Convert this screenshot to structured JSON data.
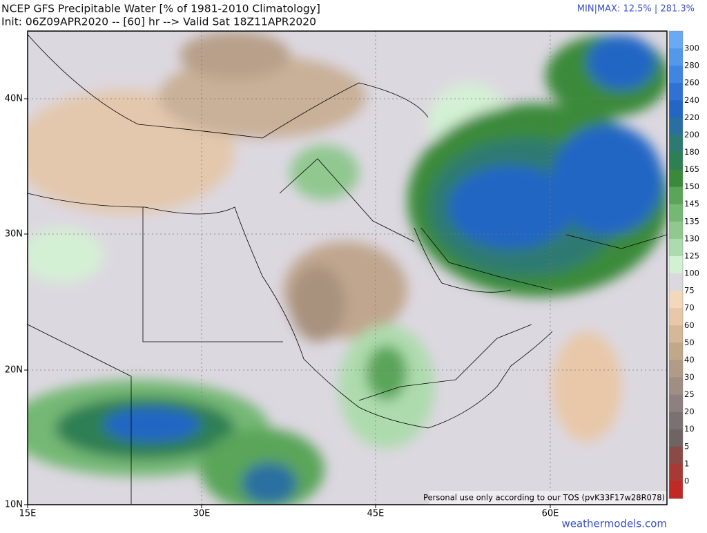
{
  "header": {
    "title": "NCEP GFS Precipitable Water [% of 1981-2010 Climatology]",
    "subtitle": "Init: 06Z09APR2020 -- [60] hr --> Valid Sat 18Z11APR2020",
    "minmax": "MIN|MAX: 12.5% | 281.3%"
  },
  "map": {
    "lon_labels": [
      "15E",
      "30E",
      "45E",
      "60E"
    ],
    "lat_labels": [
      "40N",
      "30N",
      "20N",
      "10N"
    ],
    "notice": "Personal use only according to our TOS (pvK33F17w28R078)"
  },
  "colorbar": {
    "labels": [
      "300",
      "280",
      "260",
      "240",
      "220",
      "200",
      "180",
      "165",
      "150",
      "145",
      "135",
      "130",
      "125",
      "100",
      "75",
      "70",
      "60",
      "50",
      "40",
      "30",
      "25",
      "20",
      "10",
      "5",
      "1",
      "0"
    ],
    "colors": [
      "#6aaaf2",
      "#5498ec",
      "#3f86e2",
      "#2f72d4",
      "#2466c4",
      "#2a6fa0",
      "#2d7a72",
      "#2f7f55",
      "#3b8a3b",
      "#5aa55a",
      "#74b874",
      "#90c890",
      "#aedbae",
      "#d4f0d4",
      "#dcd8e0",
      "#f4d8bc",
      "#e8c8a8",
      "#d4b898",
      "#c0a888",
      "#b09a88",
      "#9e8e84",
      "#8e8080",
      "#7a7272",
      "#6e6464",
      "#8a4a48",
      "#a83a36",
      "#c02a26"
    ]
  },
  "footer": {
    "site": "weathermodels.com"
  }
}
